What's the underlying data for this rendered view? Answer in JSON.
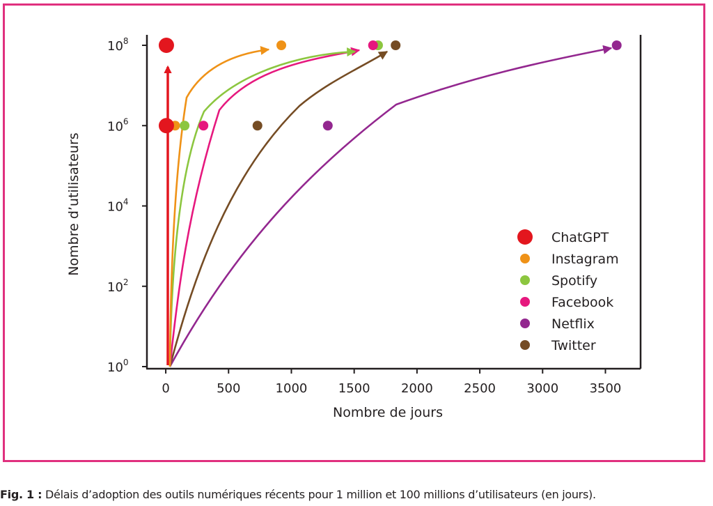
{
  "caption": {
    "label": "Fig. 1 :",
    "text": "Délais d’adoption des outils numériques récents pour 1 million et 100 millions d’utilisateurs (en jours)."
  },
  "chart_data": {
    "type": "scatter",
    "xlabel": "Nombre de jours",
    "ylabel": "Nombre d’utilisateurs",
    "xlim": [
      -150,
      3780
    ],
    "ylim": [
      1,
      100000000
    ],
    "yscale": "log10",
    "x_ticks": [
      0,
      500,
      1000,
      1500,
      2000,
      2500,
      3000,
      3500
    ],
    "x_tick_labels": [
      "0",
      "500",
      "1000",
      "1500",
      "2000",
      "2500",
      "3000",
      "3500"
    ],
    "y_ticks": [
      {
        "value": 1,
        "base": "10",
        "exp": "0"
      },
      {
        "value": 100,
        "base": "10",
        "exp": "2"
      },
      {
        "value": 10000,
        "base": "10",
        "exp": "4"
      },
      {
        "value": 1000000,
        "base": "10",
        "exp": "6"
      },
      {
        "value": 100000000,
        "base": "10",
        "exp": "8"
      }
    ],
    "grid": false,
    "legend_position": "lower-right",
    "series": [
      {
        "name": "ChatGPT",
        "color": "#e3161e",
        "marker": "large",
        "points": [
          [
            5,
            1000000
          ],
          [
            5,
            100000000
          ]
        ]
      },
      {
        "name": "Instagram",
        "color": "#ef9217",
        "marker": "small",
        "points": [
          [
            75,
            1000000
          ],
          [
            920,
            100000000
          ]
        ]
      },
      {
        "name": "Spotify",
        "color": "#8cc63f",
        "marker": "small",
        "points": [
          [
            150,
            1000000
          ],
          [
            1690,
            100000000
          ]
        ]
      },
      {
        "name": "Facebook",
        "color": "#e6187e",
        "marker": "small",
        "points": [
          [
            300,
            1000000
          ],
          [
            1650,
            100000000
          ]
        ]
      },
      {
        "name": "Netflix",
        "color": "#93278f",
        "marker": "small",
        "points": [
          [
            1290,
            1000000
          ],
          [
            3590,
            100000000
          ]
        ]
      },
      {
        "name": "Twitter",
        "color": "#754c24",
        "marker": "small",
        "points": [
          [
            730,
            1000000
          ],
          [
            1830,
            100000000
          ]
        ]
      }
    ]
  }
}
